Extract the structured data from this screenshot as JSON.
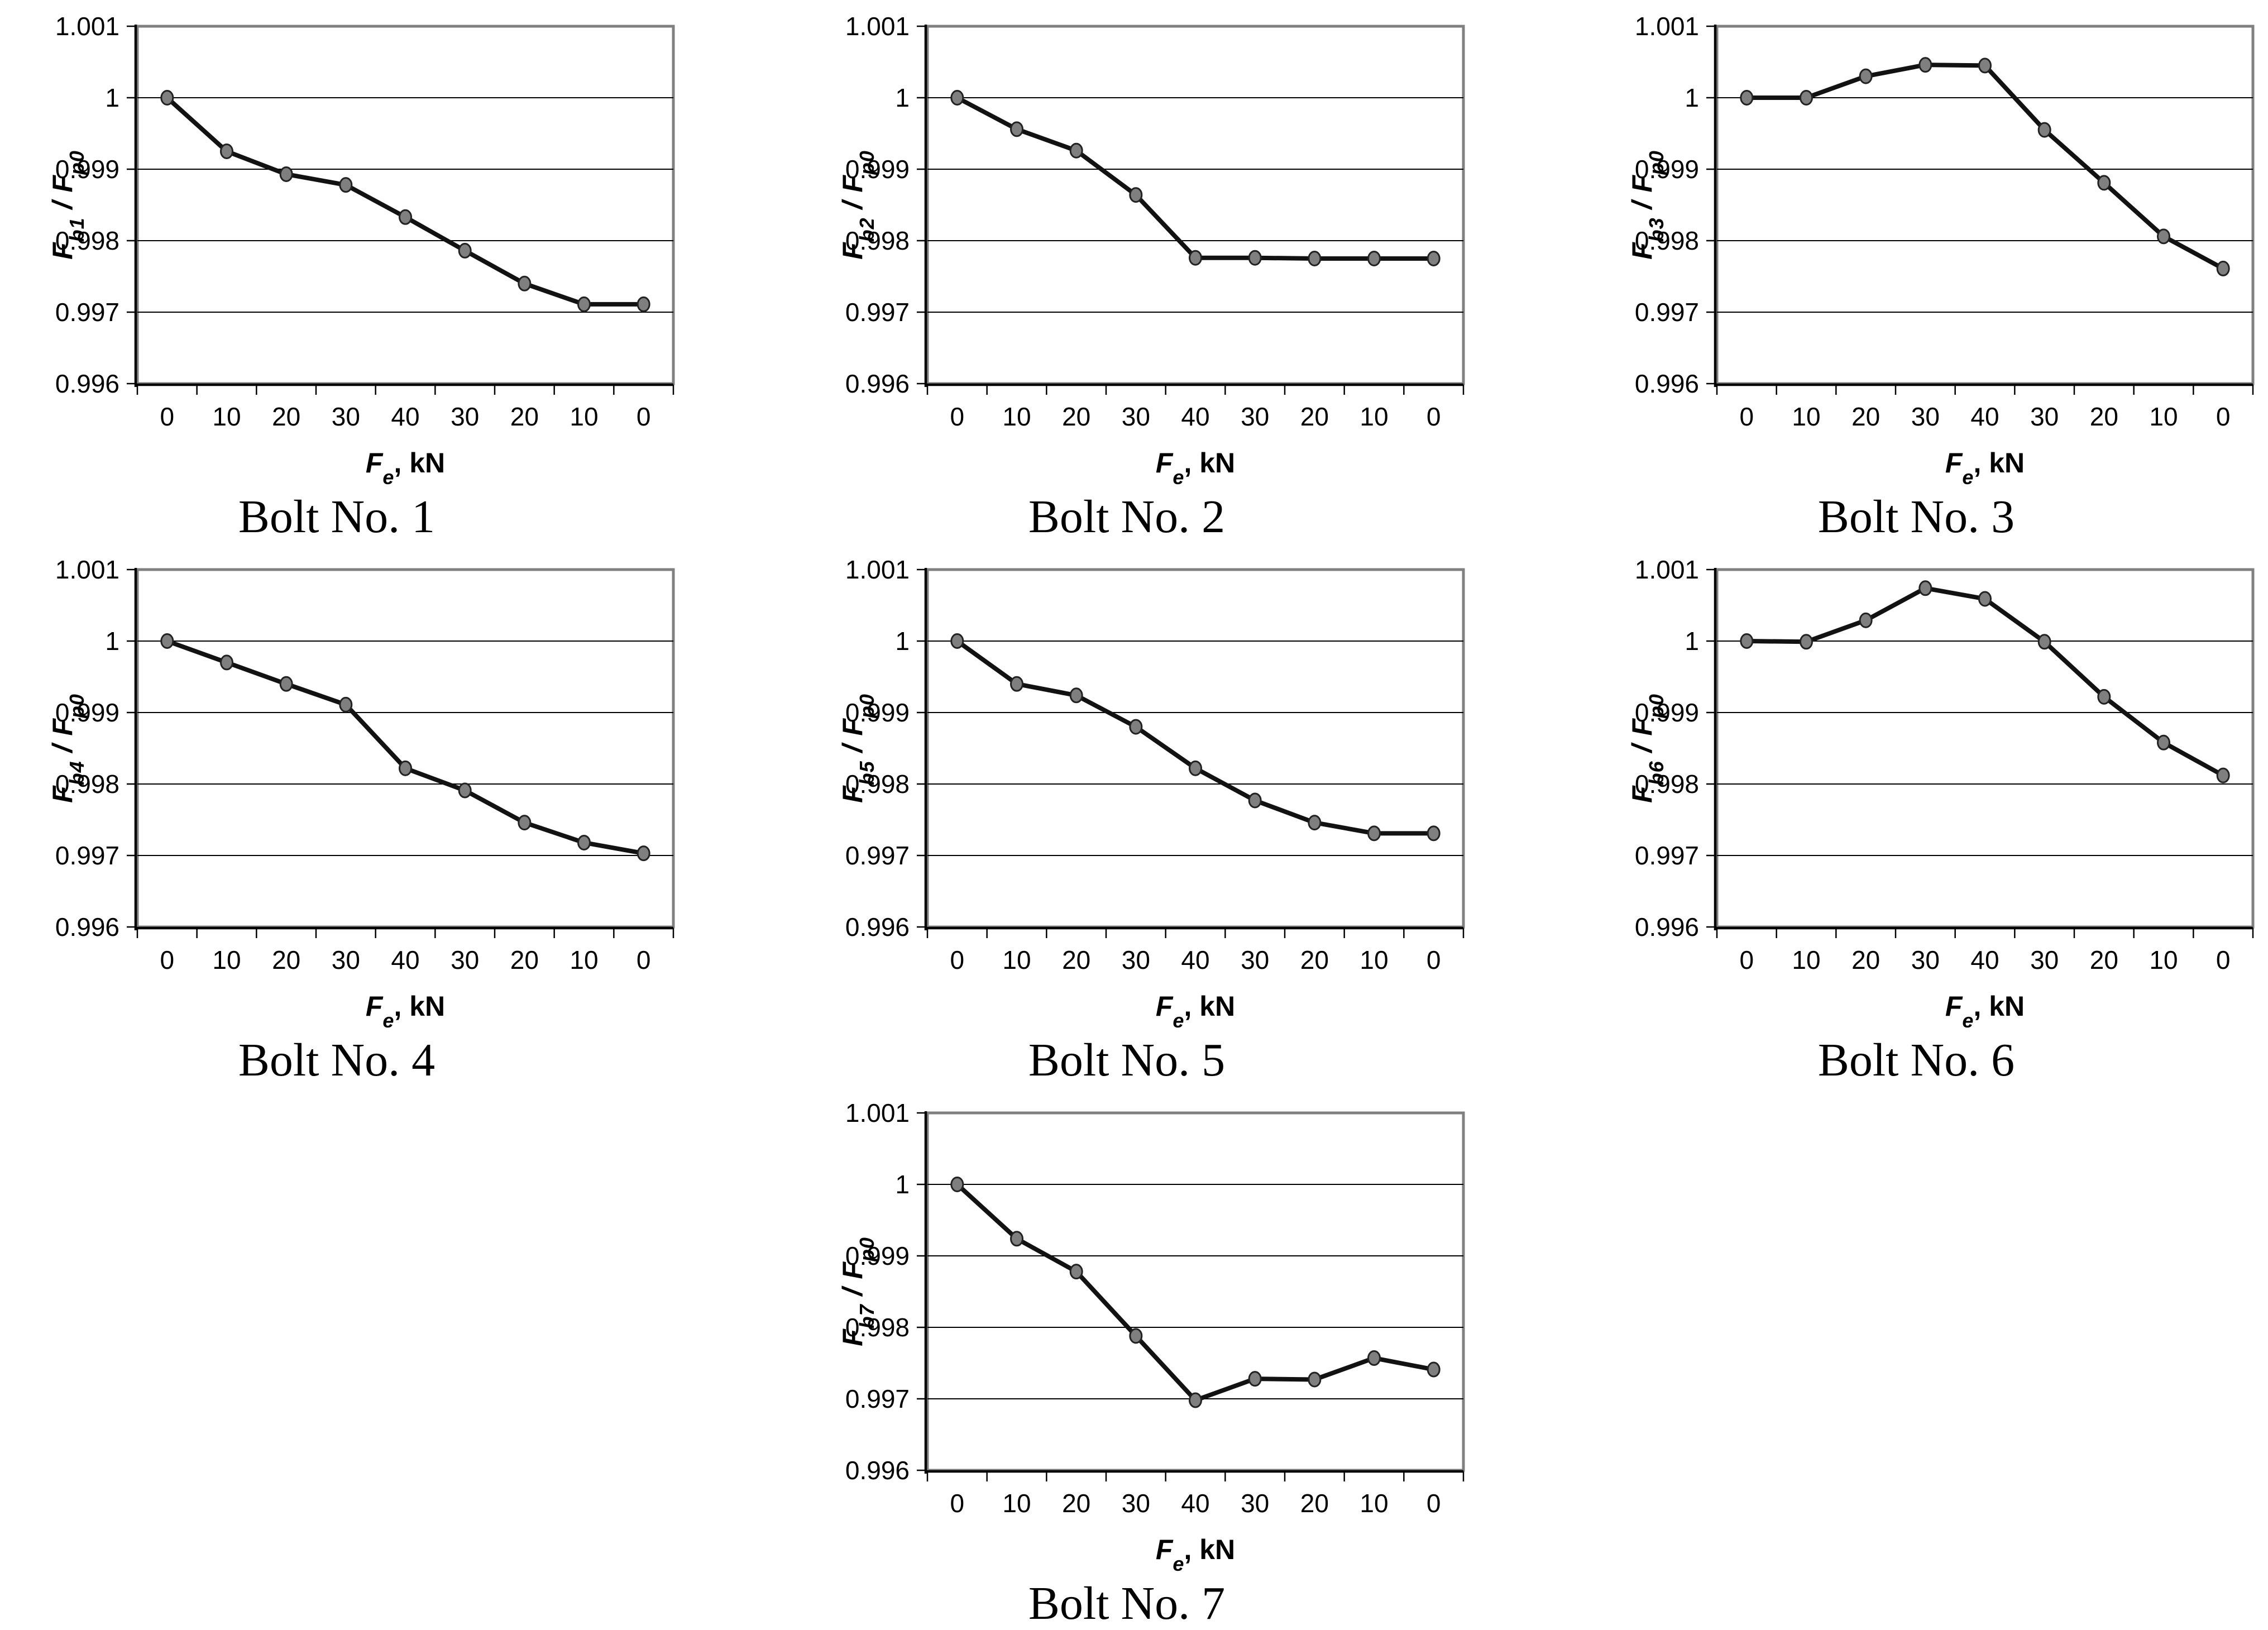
{
  "shared": {
    "ylabel_f": "F",
    "ylabel_sep": " / ",
    "ylabel_f2": "F",
    "ylabel_sub2": "p0",
    "xlabel_f": "F",
    "xlabel_sub": "e",
    "xlabel_rest": ", kN"
  },
  "style": {
    "background": "#ffffff",
    "line_color": "#121212",
    "marker_fill": "#7f7f7f",
    "marker_stroke": "#222222",
    "grid_color": "#000000",
    "plot_border_color": "#808080",
    "axis_color": "#000000",
    "text_color": "#000000"
  },
  "axes": {
    "categories": [
      "0",
      "10",
      "20",
      "30",
      "40",
      "30",
      "20",
      "10",
      "0"
    ],
    "yticks": [
      {
        "v": 1.001,
        "label": "1.001"
      },
      {
        "v": 1.0,
        "label": "1"
      },
      {
        "v": 0.999,
        "label": "0.999"
      },
      {
        "v": 0.998,
        "label": "0.998"
      },
      {
        "v": 0.997,
        "label": "0.997"
      },
      {
        "v": 0.996,
        "label": "0.996"
      }
    ],
    "ymin": 0.996,
    "ymax": 1.001,
    "grid_values": [
      0.997,
      0.998,
      0.999,
      1.0
    ]
  },
  "chart_data": [
    {
      "type": "line",
      "title": "Bolt No. 1",
      "ylabel_sub": "b1",
      "col": 0,
      "row": 0,
      "categories": [
        "0",
        "10",
        "20",
        "30",
        "40",
        "30",
        "20",
        "10",
        "0"
      ],
      "values": [
        1.0,
        0.99925,
        0.99893,
        0.99878,
        0.99833,
        0.99786,
        0.9974,
        0.99711,
        0.99711
      ],
      "xlabel": "Fe, kN",
      "ylabel": "Fb1 / Fp0",
      "ylim": [
        0.996,
        1.001
      ]
    },
    {
      "type": "line",
      "title": "Bolt No. 2",
      "ylabel_sub": "b2",
      "col": 1,
      "row": 0,
      "categories": [
        "0",
        "10",
        "20",
        "30",
        "40",
        "30",
        "20",
        "10",
        "0"
      ],
      "values": [
        1.0,
        0.99956,
        0.99926,
        0.99864,
        0.99776,
        0.99776,
        0.99775,
        0.99775,
        0.99775
      ],
      "xlabel": "Fe, kN",
      "ylabel": "Fb2 / Fp0",
      "ylim": [
        0.996,
        1.001
      ]
    },
    {
      "type": "line",
      "title": "Bolt No. 3",
      "ylabel_sub": "b3",
      "col": 2,
      "row": 0,
      "categories": [
        "0",
        "10",
        "20",
        "30",
        "40",
        "30",
        "20",
        "10",
        "0"
      ],
      "values": [
        1.0,
        1.0,
        1.0003,
        1.00046,
        1.00045,
        0.99955,
        0.99881,
        0.99806,
        0.99761
      ],
      "xlabel": "Fe, kN",
      "ylabel": "Fb3 / Fp0",
      "ylim": [
        0.996,
        1.001
      ]
    },
    {
      "type": "line",
      "title": "Bolt No. 4",
      "ylabel_sub": "b4",
      "col": 0,
      "row": 1,
      "categories": [
        "0",
        "10",
        "20",
        "30",
        "40",
        "30",
        "20",
        "10",
        "0"
      ],
      "values": [
        1.0,
        0.9997,
        0.9994,
        0.99911,
        0.99822,
        0.99791,
        0.99746,
        0.99718,
        0.99703
      ],
      "xlabel": "Fe, kN",
      "ylabel": "Fb4 / Fp0",
      "ylim": [
        0.996,
        1.001
      ]
    },
    {
      "type": "line",
      "title": "Bolt No. 5",
      "ylabel_sub": "b5",
      "col": 1,
      "row": 1,
      "categories": [
        "0",
        "10",
        "20",
        "30",
        "40",
        "30",
        "20",
        "10",
        "0"
      ],
      "values": [
        1.0,
        0.9994,
        0.99924,
        0.9988,
        0.99822,
        0.99777,
        0.99746,
        0.99731,
        0.99731
      ],
      "xlabel": "Fe, kN",
      "ylabel": "Fb5 / Fp0",
      "ylim": [
        0.996,
        1.001
      ]
    },
    {
      "type": "line",
      "title": "Bolt No. 6",
      "ylabel_sub": "b6",
      "col": 2,
      "row": 1,
      "categories": [
        "0",
        "10",
        "20",
        "30",
        "40",
        "30",
        "20",
        "10",
        "0"
      ],
      "values": [
        1.0,
        0.99999,
        1.00029,
        1.00074,
        1.00059,
        0.99999,
        0.99922,
        0.99858,
        0.99812
      ],
      "xlabel": "Fe, kN",
      "ylabel": "Fb6 / Fp0",
      "ylim": [
        0.996,
        1.001
      ]
    },
    {
      "type": "line",
      "title": "Bolt No. 7",
      "ylabel_sub": "b7",
      "col": 1,
      "row": 2,
      "categories": [
        "0",
        "10",
        "20",
        "30",
        "40",
        "30",
        "20",
        "10",
        "0"
      ],
      "values": [
        1.0,
        0.99924,
        0.99878,
        0.99788,
        0.99698,
        0.99728,
        0.99727,
        0.99757,
        0.99741
      ],
      "xlabel": "Fe, kN",
      "ylabel": "Fb7 / Fp0",
      "ylim": [
        0.996,
        1.001
      ]
    }
  ]
}
